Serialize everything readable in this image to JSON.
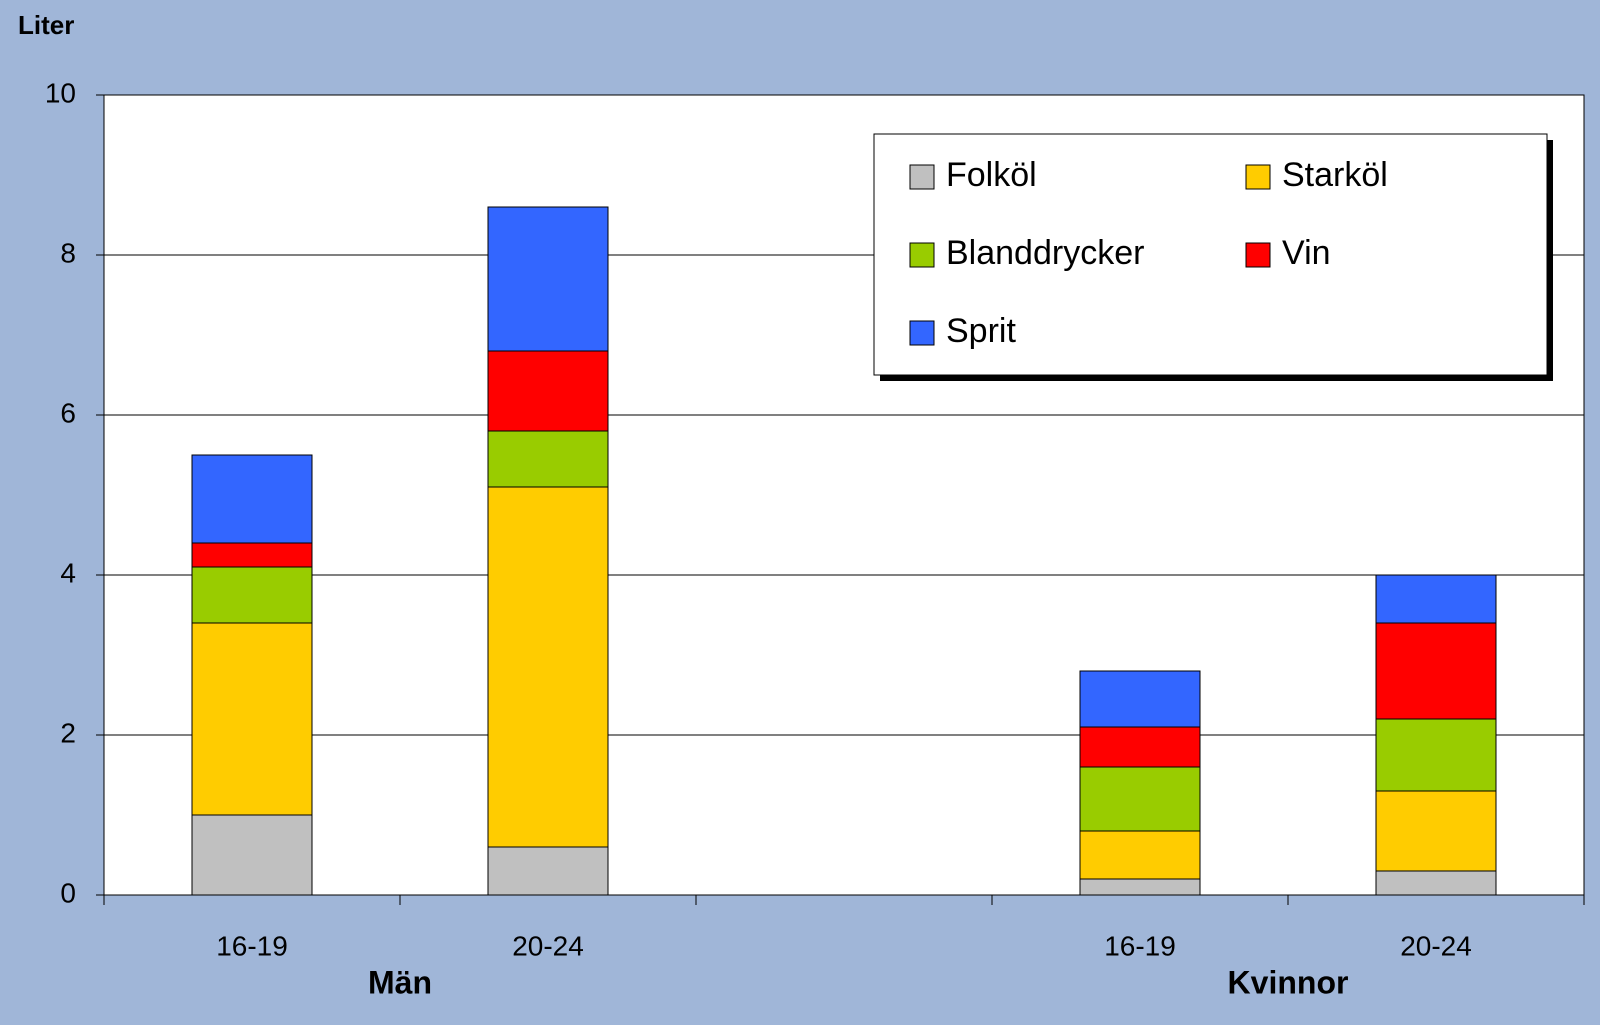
{
  "chart_data": {
    "type": "stacked_bar",
    "y_label": "Liter",
    "categories": [
      "16-19",
      "20-24",
      null,
      "16-19",
      "20-24"
    ],
    "group_labels": [
      "Män",
      "Kvinnor"
    ],
    "series": [
      {
        "name": "Folköl",
        "color": "#c0c0c0",
        "values": [
          1.0,
          0.6,
          null,
          0.2,
          0.3
        ]
      },
      {
        "name": "Starköl",
        "color": "#ffcc00",
        "values": [
          2.4,
          4.5,
          null,
          0.6,
          1.0
        ]
      },
      {
        "name": "Blanddrycker",
        "color": "#99cc00",
        "values": [
          0.7,
          0.7,
          null,
          0.8,
          0.9
        ]
      },
      {
        "name": "Vin",
        "color": "#ff0000",
        "values": [
          0.3,
          1.0,
          null,
          0.5,
          1.2
        ]
      },
      {
        "name": "Sprit",
        "color": "#3366ff",
        "values": [
          1.1,
          1.8,
          null,
          0.7,
          0.6
        ]
      }
    ],
    "ylim": [
      0,
      10
    ],
    "yticks": [
      0,
      2,
      4,
      6,
      8,
      10
    ],
    "grid": true,
    "legend": "top-right"
  }
}
